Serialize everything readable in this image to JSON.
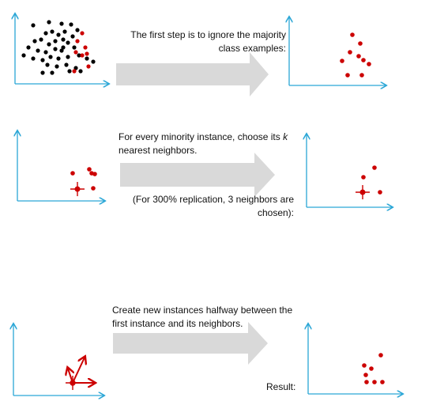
{
  "steps": [
    {
      "line1": "The first step is to ignore the majority",
      "line2": "class examples:"
    },
    {
      "line1": "For every minority instance, choose its",
      "k": "k",
      "line2": "nearest neighbors.",
      "note1": "(For 300% replication, 3 neighbors are",
      "note2": "chosen):"
    },
    {
      "line1": "Create new instances halfway between the",
      "line2": "first instance and its neighbors.",
      "result": "Result:"
    }
  ],
  "colors": {
    "axis": "#2aa6d6",
    "arrow": "#d9d9d9",
    "minority": "#cc0000",
    "majority": "#000000"
  }
}
